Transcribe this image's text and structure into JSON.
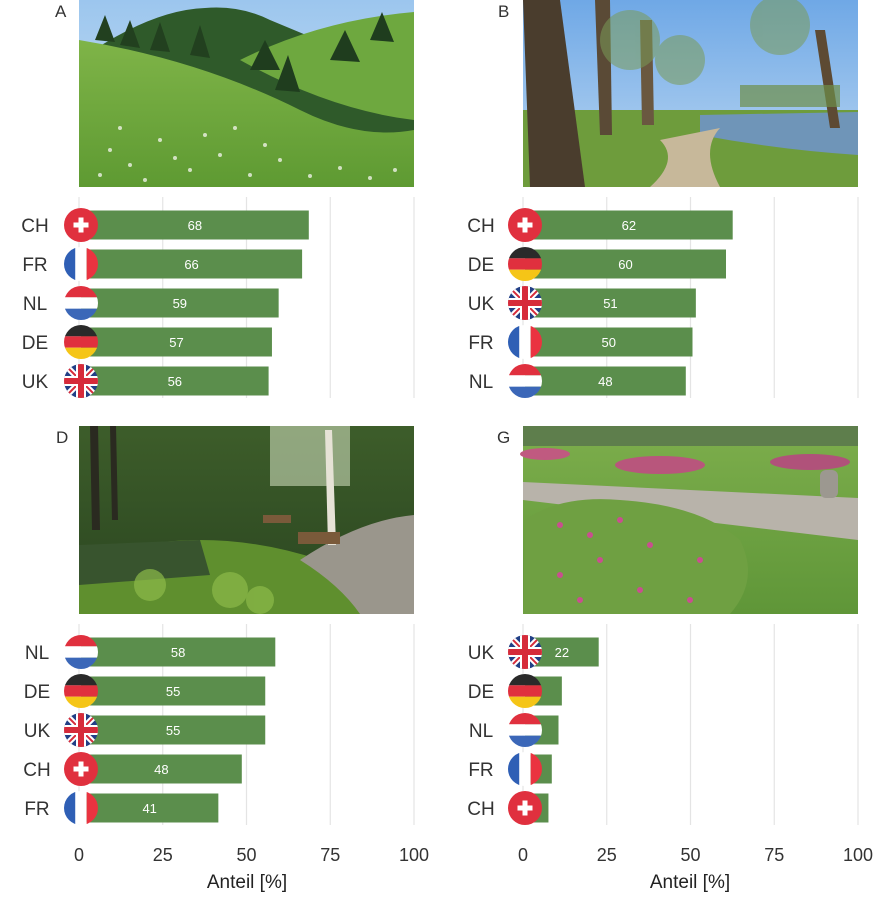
{
  "colors": {
    "bar": "#5b8e4c",
    "grid": "#e4e4e4",
    "ch_red": "#e0303e",
    "fr_blue": "#2f5fb5",
    "fr_red": "#ea3340",
    "nl_red": "#e0303e",
    "nl_blue": "#3b67b8",
    "de_black": "#2a2a2a",
    "de_red": "#e0303e",
    "de_gold": "#f5c517",
    "uk_blue": "#223f86",
    "uk_red": "#d62b3a"
  },
  "x_axis_title": "Anteil [%]",
  "chart_data": [
    {
      "type": "bar",
      "orientation": "horizontal",
      "panel": "A",
      "photo": "meadow with white flowers below forested hill",
      "categories": [
        "CH",
        "FR",
        "NL",
        "DE",
        "UK"
      ],
      "values": [
        68,
        66,
        59,
        57,
        56
      ],
      "value_labels": [
        "68",
        "66",
        "59",
        "57",
        "56"
      ],
      "icons": [
        "swiss-flag-icon",
        "french-flag-icon",
        "dutch-flag-icon",
        "german-flag-icon",
        "uk-flag-icon"
      ],
      "xlim": [
        0,
        100
      ],
      "xticks": [
        "0",
        "25",
        "50",
        "75",
        "100"
      ],
      "xlabel": "",
      "grid": "vertical"
    },
    {
      "type": "bar",
      "orientation": "horizontal",
      "panel": "B",
      "photo": "park with tall trees, path and pond",
      "categories": [
        "CH",
        "DE",
        "UK",
        "FR",
        "NL"
      ],
      "values": [
        62,
        60,
        51,
        50,
        48
      ],
      "value_labels": [
        "62",
        "60",
        "51",
        "50",
        "48"
      ],
      "icons": [
        "swiss-flag-icon",
        "german-flag-icon",
        "uk-flag-icon",
        "french-flag-icon",
        "dutch-flag-icon"
      ],
      "xlim": [
        0,
        100
      ],
      "xticks": [
        "0",
        "25",
        "50",
        "75",
        "100"
      ],
      "xlabel": "",
      "grid": "vertical"
    },
    {
      "type": "bar",
      "orientation": "horizontal",
      "panel": "D",
      "photo": "shady garden with pond, bench and gravel path",
      "categories": [
        "NL",
        "DE",
        "UK",
        "CH",
        "FR"
      ],
      "values": [
        58,
        55,
        55,
        48,
        41
      ],
      "value_labels": [
        "58",
        "55",
        "55",
        "48",
        "41"
      ],
      "icons": [
        "dutch-flag-icon",
        "german-flag-icon",
        "uk-flag-icon",
        "swiss-flag-icon",
        "french-flag-icon"
      ],
      "xlim": [
        0,
        100
      ],
      "xticks": [
        "0",
        "25",
        "50",
        "75",
        "100"
      ],
      "xlabel": "Anteil [%]",
      "grid": "vertical"
    },
    {
      "type": "bar",
      "orientation": "horizontal",
      "panel": "G",
      "photo": "formal garden with flower beds and lawn",
      "categories": [
        "UK",
        "DE",
        "NL",
        "FR",
        "CH"
      ],
      "values": [
        22,
        11,
        10,
        8,
        7
      ],
      "value_labels": [
        "22",
        "",
        "",
        "",
        ""
      ],
      "icons": [
        "uk-flag-icon",
        "german-flag-icon",
        "dutch-flag-icon",
        "french-flag-icon",
        "swiss-flag-icon"
      ],
      "xlim": [
        0,
        100
      ],
      "xticks": [
        "0",
        "25",
        "50",
        "75",
        "100"
      ],
      "xlabel": "Anteil [%]",
      "grid": "vertical"
    }
  ]
}
